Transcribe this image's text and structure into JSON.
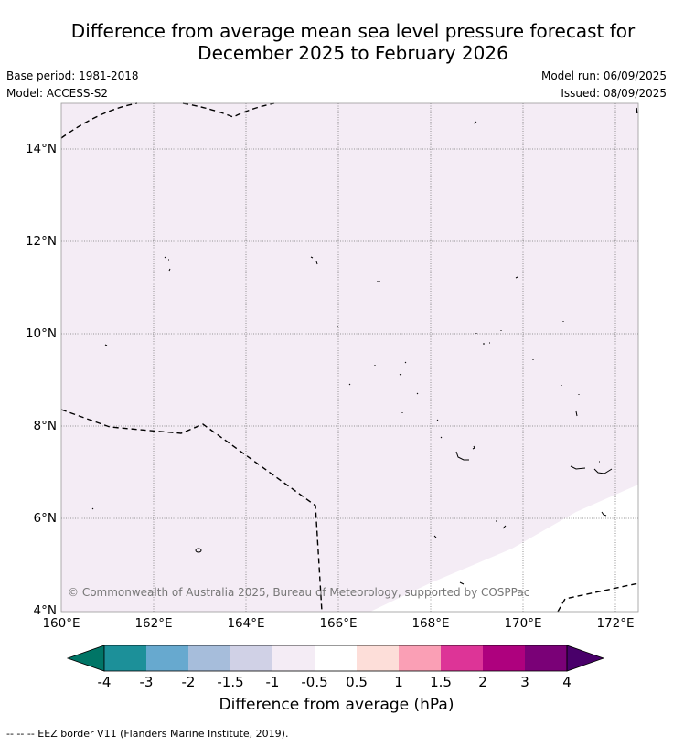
{
  "title_line1": "Difference from average mean sea level pressure forecast for",
  "title_line2": "December 2025 to February 2026",
  "meta": {
    "base_period": "Base period: 1981-2018",
    "model": "Model: ACCESS-S2",
    "model_run": "Model run: 06/09/2025",
    "issued": "Issued: 08/09/2025"
  },
  "map": {
    "lat_labels": [
      "14°N",
      "12°N",
      "10°N",
      "8°N",
      "6°N",
      "4°N"
    ],
    "lon_labels": [
      "160°E",
      "162°E",
      "164°E",
      "166°E",
      "168°E",
      "170°E",
      "172°E"
    ],
    "dominant_fill": "#f4ecf5",
    "copyright": "© Commonwealth of Australia 2025, Bureau of Meteorology, supported by COSPPac"
  },
  "colorbar": {
    "labels": [
      "-4",
      "-3",
      "-2",
      "-1.5",
      "-1",
      "-0.5",
      "0.5",
      "1",
      "1.5",
      "2",
      "3",
      "4"
    ],
    "colors": [
      "#007566",
      "#1c9099",
      "#67a9cf",
      "#a6bddb",
      "#d0d1e6",
      "#f4ecf5",
      "#ffffff",
      "#fdded9",
      "#fa9fb5",
      "#dd3497",
      "#ae017e",
      "#7a0177",
      "#49006a"
    ],
    "title": "Difference from average (hPa)"
  },
  "legend_note": "--  --  -- EEZ border V11 (Flanders Marine Institute, 2019)."
}
